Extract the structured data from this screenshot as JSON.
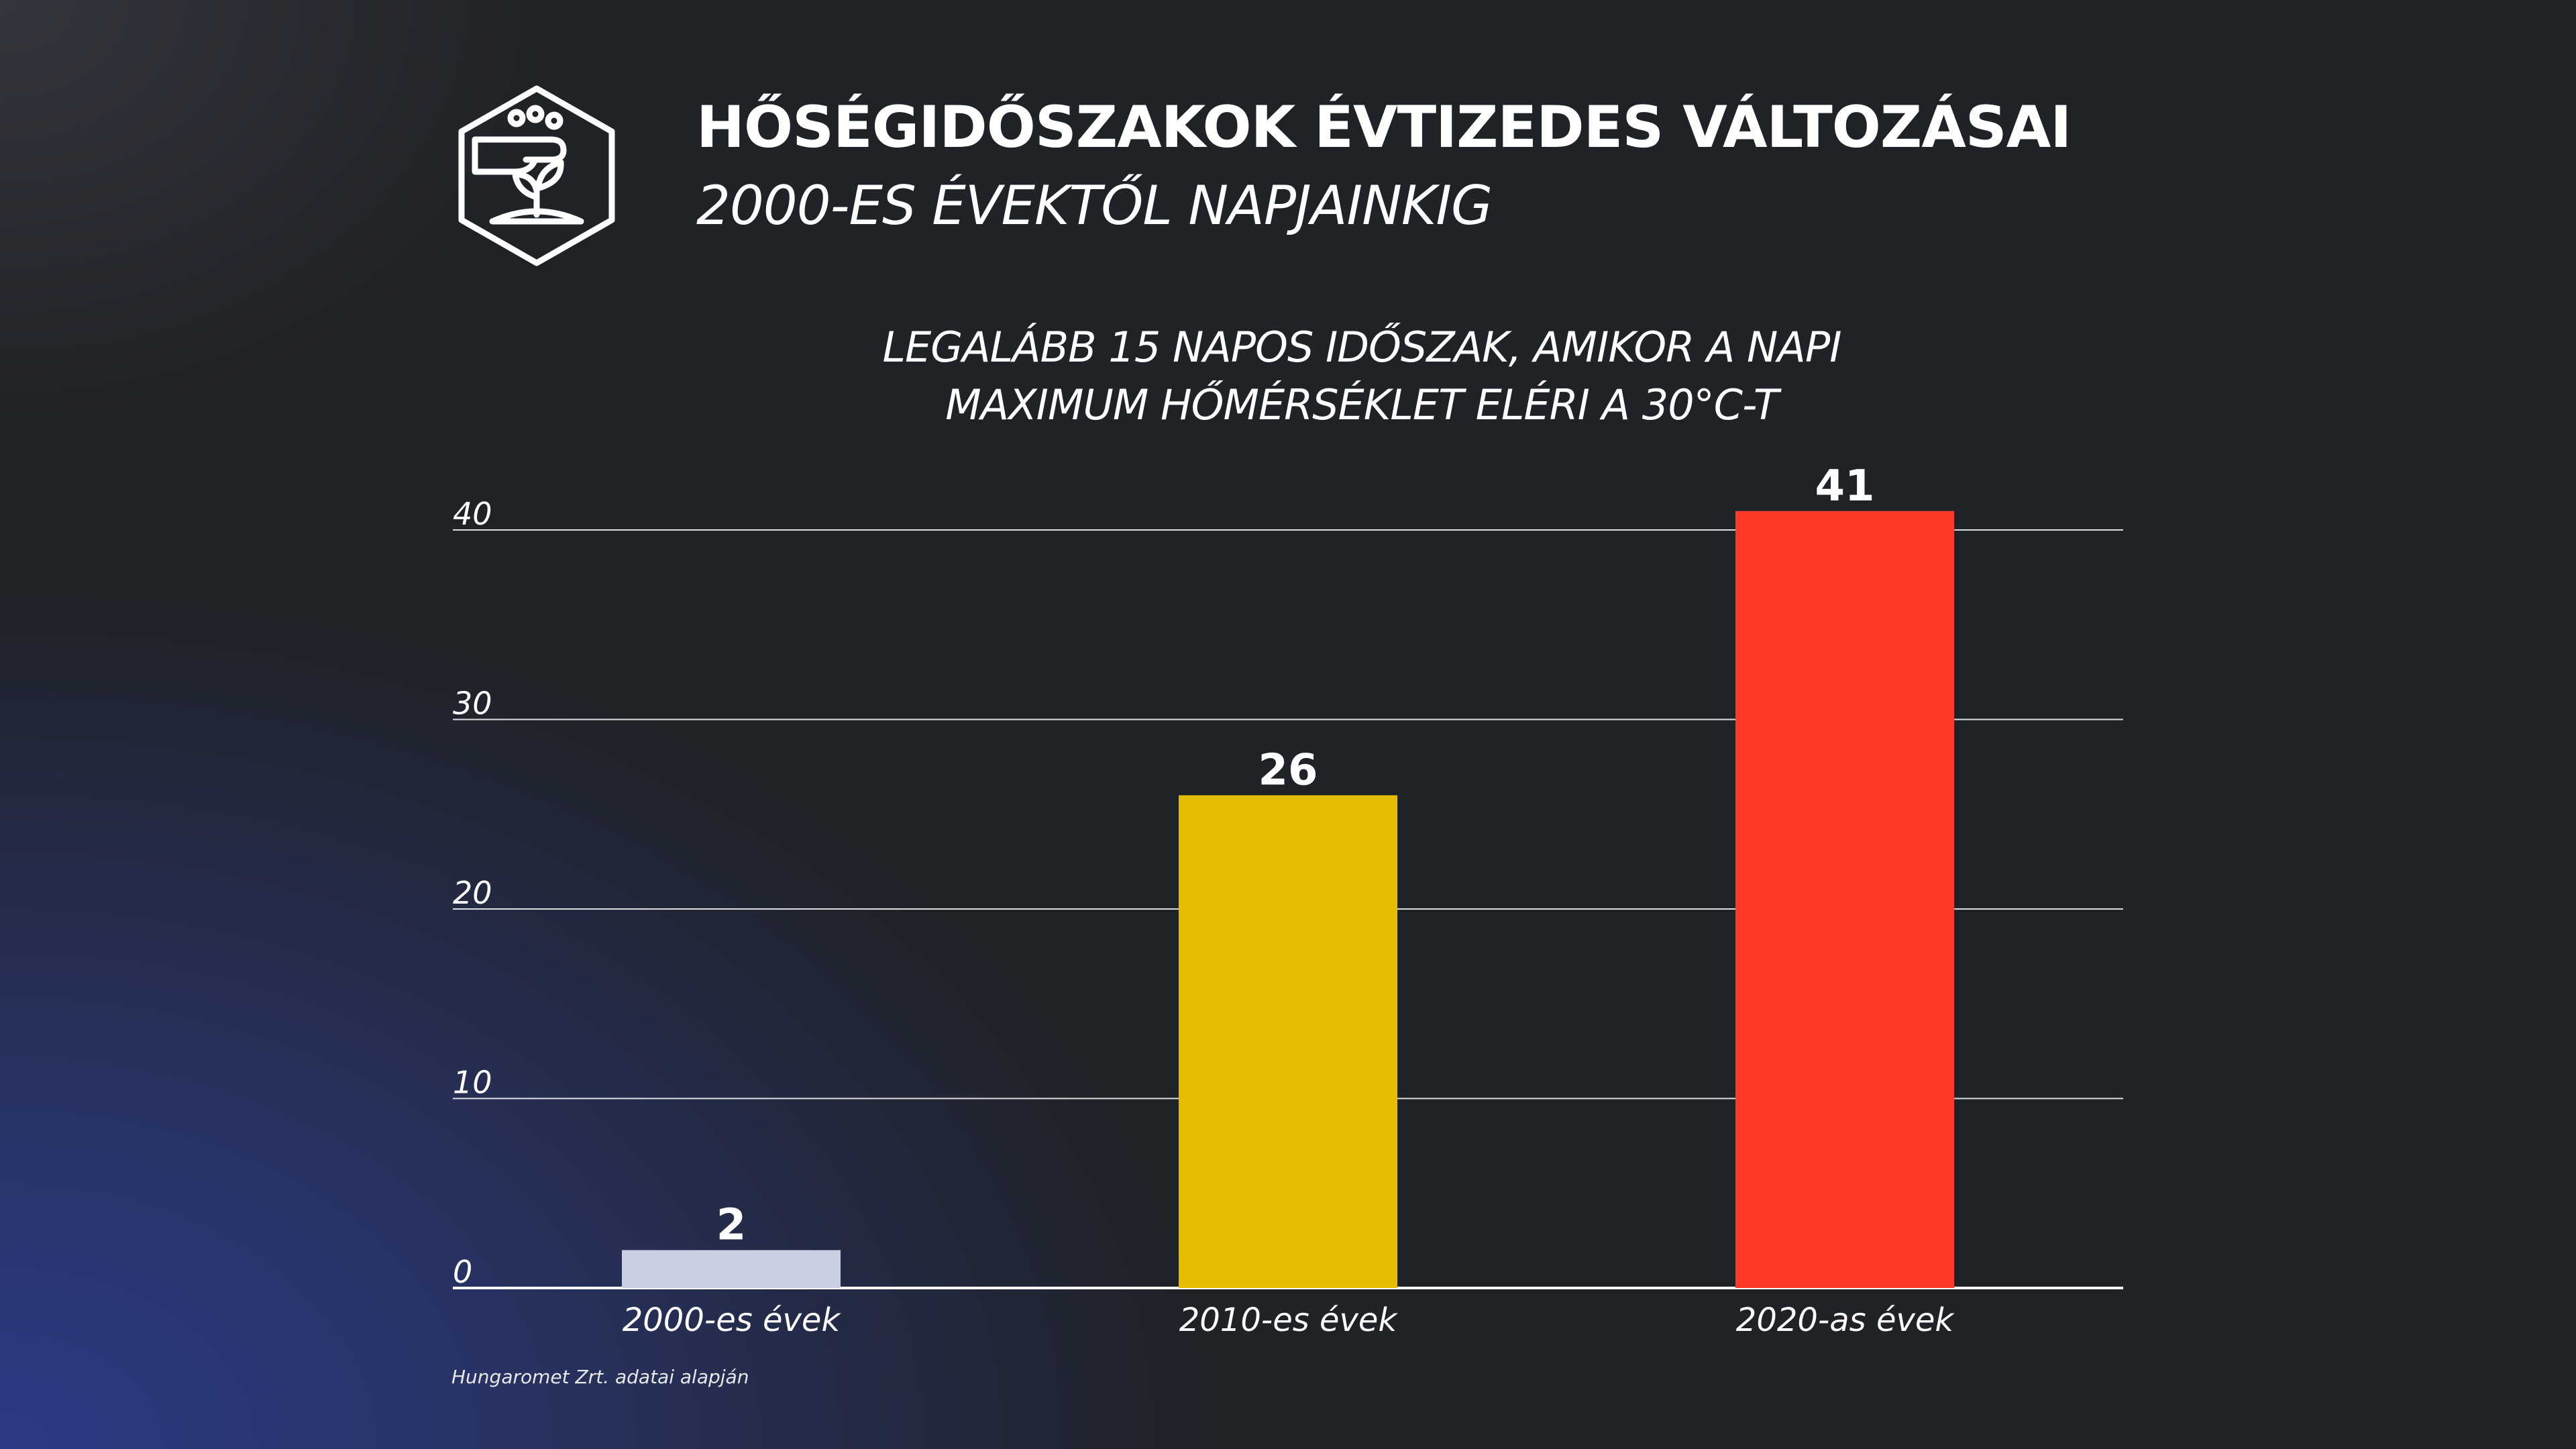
{
  "header": {
    "title": "HŐSÉGIDŐSZAKOK ÉVTIZEDES VÁLTOZÁSAI",
    "subtitle": "2000-ES ÉVEKTŐL NAPJAINKIG",
    "logo_icon": "hand-plant-hexagon-icon"
  },
  "chart_data": {
    "type": "bar",
    "title_lines": [
      "LEGALÁBB 15 NAPOS IDŐSZAK, AMIKOR A NAPI",
      "MAXIMUM HŐMÉRSÉKLET ELÉRI A 30°C-T"
    ],
    "categories": [
      "2000-es évek",
      "2010-es évek",
      "2020-as évek"
    ],
    "values": [
      2,
      26,
      41
    ],
    "value_labels": [
      "2",
      "26",
      "41"
    ],
    "colors": [
      "#c8d0e2",
      "#e6bd00",
      "#ff3a29"
    ],
    "ylim": [
      0,
      40
    ],
    "yticks": [
      0,
      10,
      20,
      30,
      40
    ],
    "grid": true,
    "xlabel": "",
    "ylabel": ""
  },
  "footer": {
    "source": "Hungaromet Zrt. adatai alapján"
  }
}
